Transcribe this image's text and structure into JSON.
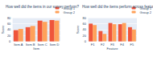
{
  "chart_data": [
    {
      "type": "bar",
      "title": "How well did the items in our survey perform?",
      "x_label": "Item",
      "y_label": "Score",
      "categories": [
        "Item A",
        "Item B",
        "Item C",
        "Item D"
      ],
      "series": [
        {
          "name": "Group 1",
          "color": "#EF553B",
          "values": [
            38,
            48,
            70,
            72
          ]
        },
        {
          "name": "Group 2",
          "color": "#FFA15A",
          "values": [
            42,
            52,
            66,
            70
          ]
        }
      ],
      "ylim": [
        0,
        80
      ],
      "yticks": [
        0,
        20,
        40,
        60,
        80
      ],
      "grid": true,
      "legend": "upper right"
    },
    {
      "type": "bar",
      "title": "How well did the items perform across features?",
      "x_label": "Feature",
      "y_label": "Score",
      "categories": [
        "F1",
        "F2",
        "F3",
        "F4",
        "F5"
      ],
      "series": [
        {
          "name": "Group 1",
          "color": "#EF553B",
          "values": [
            60,
            35,
            62,
            58,
            48
          ]
        },
        {
          "name": "Group 2",
          "color": "#FFA15A",
          "values": [
            55,
            25,
            58,
            62,
            40
          ]
        }
      ],
      "ylim": [
        0,
        80
      ],
      "yticks": [
        0,
        20,
        40,
        60,
        80
      ],
      "grid": true,
      "legend": "upper right"
    }
  ]
}
